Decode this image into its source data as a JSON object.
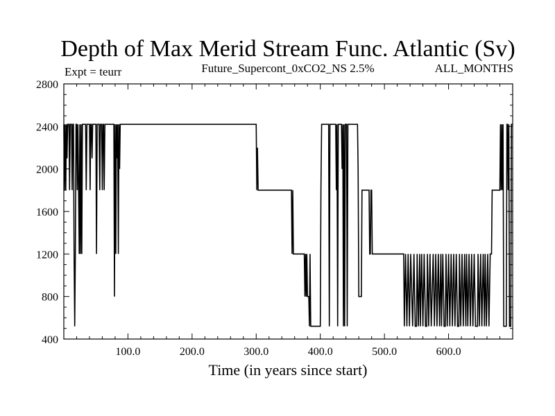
{
  "chart_data": {
    "type": "line",
    "title": "Depth of Max Merid Stream Func. Atlantic (Sv)",
    "annotations": {
      "left": "Expt = teurr",
      "center": "Future_Supercont_0xCO2_NS 2.5%",
      "right": "ALL_MONTHS"
    },
    "xlabel": "Time (in years since start)",
    "ylabel": "",
    "xlim": [
      0,
      700
    ],
    "ylim": [
      400,
      2800
    ],
    "x_ticks": [
      {
        "value": 100,
        "label": "100.0"
      },
      {
        "value": 200,
        "label": "200.0"
      },
      {
        "value": 300,
        "label": "300.0"
      },
      {
        "value": 400,
        "label": "400.0"
      },
      {
        "value": 500,
        "label": "500.0"
      },
      {
        "value": 600,
        "label": "600.0"
      }
    ],
    "y_ticks": [
      {
        "value": 400,
        "label": "400"
      },
      {
        "value": 800,
        "label": "800"
      },
      {
        "value": 1200,
        "label": "1200"
      },
      {
        "value": 1600,
        "label": "1600"
      },
      {
        "value": 2000,
        "label": "2000"
      },
      {
        "value": 2400,
        "label": "2400"
      },
      {
        "value": 2800,
        "label": "2800"
      }
    ],
    "series": [
      {
        "color": "#000000",
        "points": [
          [
            0,
            2420
          ],
          [
            1,
            1800
          ],
          [
            2,
            2420
          ],
          [
            3,
            1800
          ],
          [
            4,
            2420
          ],
          [
            5,
            2100
          ],
          [
            6,
            2420
          ],
          [
            8,
            2420
          ],
          [
            9,
            1800
          ],
          [
            10,
            2420
          ],
          [
            12,
            2420
          ],
          [
            13,
            1800
          ],
          [
            14,
            2420
          ],
          [
            15,
            2420
          ],
          [
            16,
            1200
          ],
          [
            17,
            520
          ],
          [
            18,
            1200
          ],
          [
            19,
            2420
          ],
          [
            20,
            2420
          ],
          [
            21,
            1800
          ],
          [
            22,
            2420
          ],
          [
            23,
            1800
          ],
          [
            24,
            1200
          ],
          [
            25,
            2420
          ],
          [
            26,
            1200
          ],
          [
            27,
            2420
          ],
          [
            28,
            1200
          ],
          [
            29,
            2420
          ],
          [
            34,
            2420
          ],
          [
            35,
            1800
          ],
          [
            36,
            2420
          ],
          [
            40,
            2420
          ],
          [
            41,
            1800
          ],
          [
            42,
            2420
          ],
          [
            43,
            2420
          ],
          [
            44,
            2100
          ],
          [
            45,
            2420
          ],
          [
            50,
            2420
          ],
          [
            51,
            1200
          ],
          [
            52,
            2420
          ],
          [
            55,
            2420
          ],
          [
            56,
            1800
          ],
          [
            57,
            2420
          ],
          [
            59,
            2420
          ],
          [
            60,
            1800
          ],
          [
            61,
            2420
          ],
          [
            62,
            2420
          ],
          [
            63,
            1800
          ],
          [
            64,
            2420
          ],
          [
            78,
            2420
          ],
          [
            79,
            800
          ],
          [
            80,
            2420
          ],
          [
            81,
            1200
          ],
          [
            82,
            2420
          ],
          [
            83,
            2100
          ],
          [
            84,
            2420
          ],
          [
            85,
            1200
          ],
          [
            86,
            2420
          ],
          [
            87,
            2000
          ],
          [
            88,
            2420
          ],
          [
            300,
            2420
          ],
          [
            301,
            1800
          ],
          [
            302,
            2200
          ],
          [
            303,
            1800
          ],
          [
            355,
            1800
          ],
          [
            356,
            1200
          ],
          [
            357,
            1800
          ],
          [
            358,
            1200
          ],
          [
            375,
            1200
          ],
          [
            376,
            800
          ],
          [
            377,
            1200
          ],
          [
            378,
            800
          ],
          [
            379,
            1200
          ],
          [
            380,
            800
          ],
          [
            382,
            800
          ],
          [
            383,
            520
          ],
          [
            384,
            1200
          ],
          [
            385,
            520
          ],
          [
            400,
            520
          ],
          [
            401,
            1800
          ],
          [
            402,
            2420
          ],
          [
            413,
            2420
          ],
          [
            414,
            520
          ],
          [
            415,
            2420
          ],
          [
            424,
            2420
          ],
          [
            425,
            1800
          ],
          [
            426,
            2420
          ],
          [
            427,
            520
          ],
          [
            428,
            2420
          ],
          [
            433,
            2420
          ],
          [
            434,
            2000
          ],
          [
            435,
            2420
          ],
          [
            436,
            520
          ],
          [
            437,
            2420
          ],
          [
            438,
            520
          ],
          [
            439,
            2420
          ],
          [
            441,
            2420
          ],
          [
            442,
            520
          ],
          [
            443,
            2420
          ],
          [
            458,
            2420
          ],
          [
            459,
            2000
          ],
          [
            460,
            800
          ],
          [
            464,
            800
          ],
          [
            465,
            1800
          ],
          [
            476,
            1800
          ],
          [
            477,
            1200
          ],
          [
            478,
            1200
          ],
          [
            479,
            1800
          ],
          [
            480,
            1800
          ],
          [
            481,
            1200
          ],
          [
            530,
            1200
          ],
          [
            531,
            520
          ],
          [
            533,
            1200
          ],
          [
            535,
            520
          ],
          [
            537,
            1200
          ],
          [
            539,
            520
          ],
          [
            541,
            1200
          ],
          [
            544,
            520
          ],
          [
            546,
            1200
          ],
          [
            548,
            520
          ],
          [
            550,
            520
          ],
          [
            551,
            1200
          ],
          [
            553,
            520
          ],
          [
            555,
            1200
          ],
          [
            556,
            520
          ],
          [
            558,
            1200
          ],
          [
            560,
            520
          ],
          [
            562,
            1200
          ],
          [
            564,
            520
          ],
          [
            566,
            520
          ],
          [
            567,
            1200
          ],
          [
            569,
            520
          ],
          [
            571,
            1200
          ],
          [
            573,
            520
          ],
          [
            576,
            1200
          ],
          [
            578,
            520
          ],
          [
            580,
            1200
          ],
          [
            582,
            520
          ],
          [
            584,
            1200
          ],
          [
            586,
            520
          ],
          [
            588,
            1200
          ],
          [
            589,
            520
          ],
          [
            591,
            1200
          ],
          [
            593,
            520
          ],
          [
            595,
            520
          ],
          [
            596,
            1200
          ],
          [
            598,
            520
          ],
          [
            600,
            1200
          ],
          [
            602,
            520
          ],
          [
            604,
            1200
          ],
          [
            606,
            520
          ],
          [
            608,
            1200
          ],
          [
            610,
            520
          ],
          [
            612,
            1200
          ],
          [
            614,
            520
          ],
          [
            616,
            520
          ],
          [
            617,
            1200
          ],
          [
            619,
            520
          ],
          [
            621,
            1200
          ],
          [
            623,
            520
          ],
          [
            625,
            1200
          ],
          [
            627,
            520
          ],
          [
            628,
            1200
          ],
          [
            630,
            520
          ],
          [
            632,
            1200
          ],
          [
            634,
            520
          ],
          [
            636,
            1200
          ],
          [
            638,
            520
          ],
          [
            640,
            1200
          ],
          [
            642,
            520
          ],
          [
            645,
            520
          ],
          [
            646,
            1200
          ],
          [
            648,
            520
          ],
          [
            650,
            1200
          ],
          [
            652,
            520
          ],
          [
            654,
            1200
          ],
          [
            656,
            520
          ],
          [
            657,
            1200
          ],
          [
            659,
            520
          ],
          [
            661,
            1200
          ],
          [
            663,
            520
          ],
          [
            665,
            1200
          ],
          [
            667,
            1200
          ],
          [
            668,
            1800
          ],
          [
            680,
            1800
          ],
          [
            681,
            2420
          ],
          [
            682,
            1800
          ],
          [
            683,
            2420
          ],
          [
            684,
            1800
          ],
          [
            685,
            2420
          ],
          [
            686,
            520
          ],
          [
            690,
            520
          ],
          [
            691,
            2420
          ],
          [
            692,
            2420
          ],
          [
            693,
            1800
          ],
          [
            694,
            2420
          ],
          [
            695,
            520
          ],
          [
            697,
            520
          ],
          [
            698,
            2420
          ],
          [
            700,
            2420
          ]
        ]
      }
    ]
  }
}
